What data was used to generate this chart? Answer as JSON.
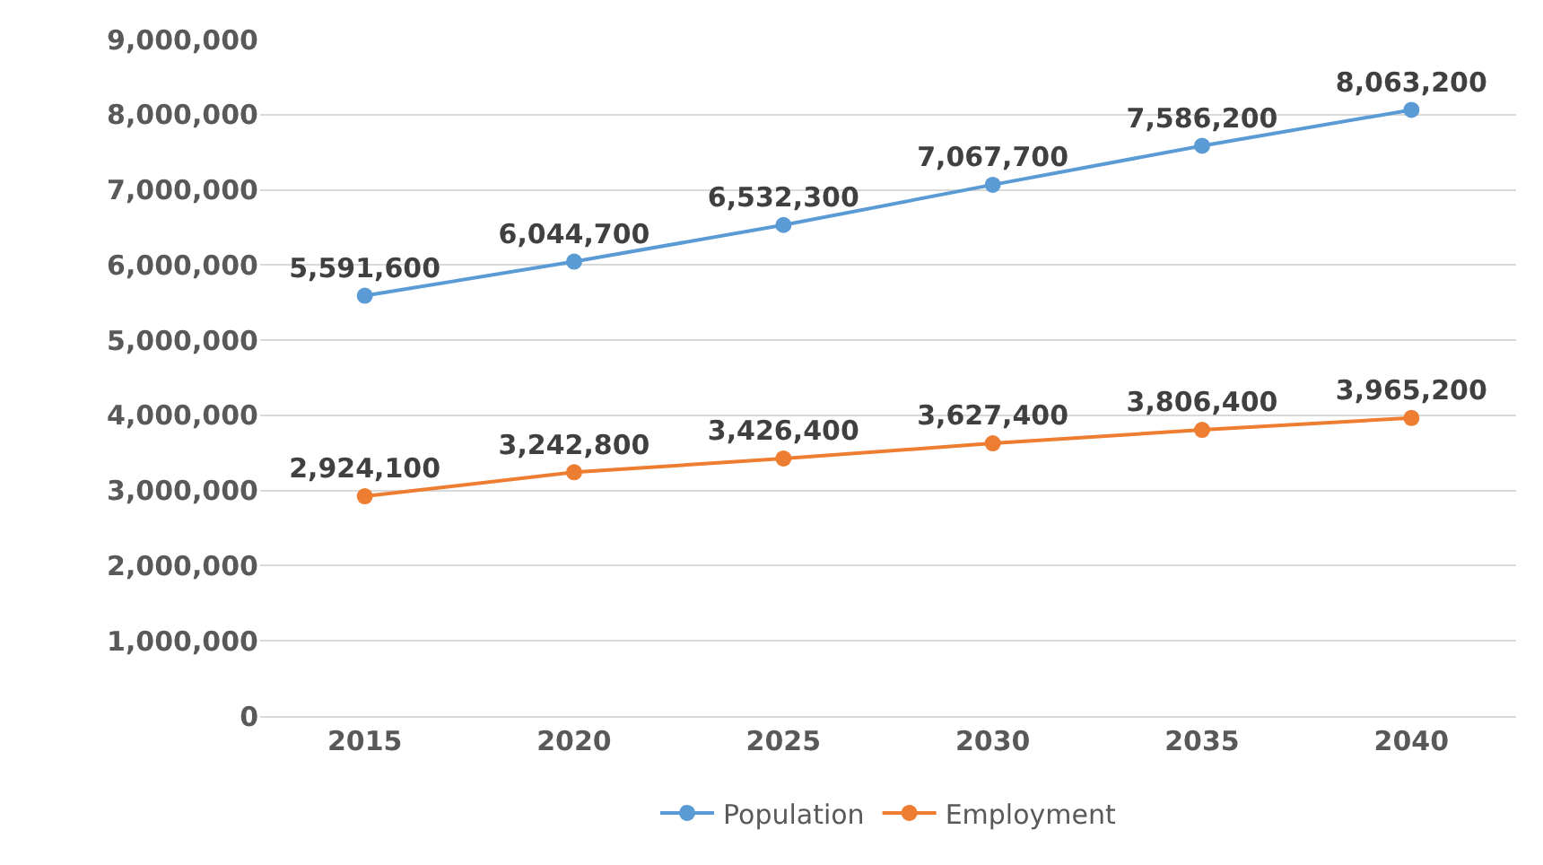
{
  "chart_data": {
    "type": "line",
    "categories": [
      "2015",
      "2020",
      "2025",
      "2030",
      "2035",
      "2040"
    ],
    "series": [
      {
        "name": "Population",
        "color": "#5b9bd5",
        "values": [
          5591600,
          6044700,
          6532300,
          7067700,
          7586200,
          8063200
        ],
        "value_labels": [
          "5,591,600",
          "6,044,700",
          "6,532,300",
          "7,067,700",
          "7,586,200",
          "8,063,200"
        ]
      },
      {
        "name": "Employment",
        "color": "#ed7d31",
        "values": [
          2924100,
          3242800,
          3426400,
          3627400,
          3806400,
          3965200
        ],
        "value_labels": [
          "2,924,100",
          "3,242,800",
          "3,426,400",
          "3,627,400",
          "3,806,400",
          "3,965,200"
        ]
      }
    ],
    "ylim": [
      0,
      9000000
    ],
    "yticks": [
      {
        "value": 0,
        "label": "0"
      },
      {
        "value": 1000000,
        "label": "1,000,000"
      },
      {
        "value": 2000000,
        "label": "2,000,000"
      },
      {
        "value": 3000000,
        "label": "3,000,000"
      },
      {
        "value": 4000000,
        "label": "4,000,000"
      },
      {
        "value": 5000000,
        "label": "5,000,000"
      },
      {
        "value": 6000000,
        "label": "6,000,000"
      },
      {
        "value": 7000000,
        "label": "7,000,000"
      },
      {
        "value": 8000000,
        "label": "8,000,000"
      },
      {
        "value": 9000000,
        "label": "9,000,000"
      }
    ],
    "grid": "y",
    "legend": "bottom",
    "marker": "circle",
    "line_style": "solid"
  }
}
